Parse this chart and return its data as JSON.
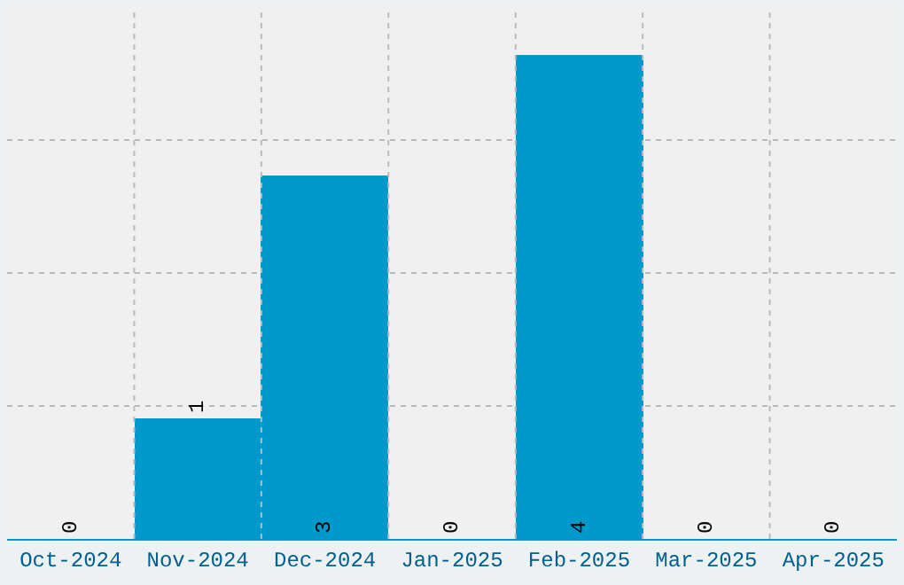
{
  "chart_data": {
    "type": "bar",
    "categories": [
      "Oct-2024",
      "Nov-2024",
      "Dec-2024",
      "Jan-2025",
      "Feb-2025",
      "Mar-2025",
      "Apr-2025"
    ],
    "values": [
      0,
      1,
      3,
      0,
      4,
      0,
      0
    ],
    "color": "#0099cc",
    "ylim": [
      0,
      4.4
    ],
    "yticks": [
      {
        "value": 1.1,
        "label": null
      },
      {
        "value": 2.2,
        "label": null
      },
      {
        "value": 3.3,
        "label": null
      }
    ],
    "tick_labels": "x",
    "grid": true,
    "data_labels": true
  }
}
